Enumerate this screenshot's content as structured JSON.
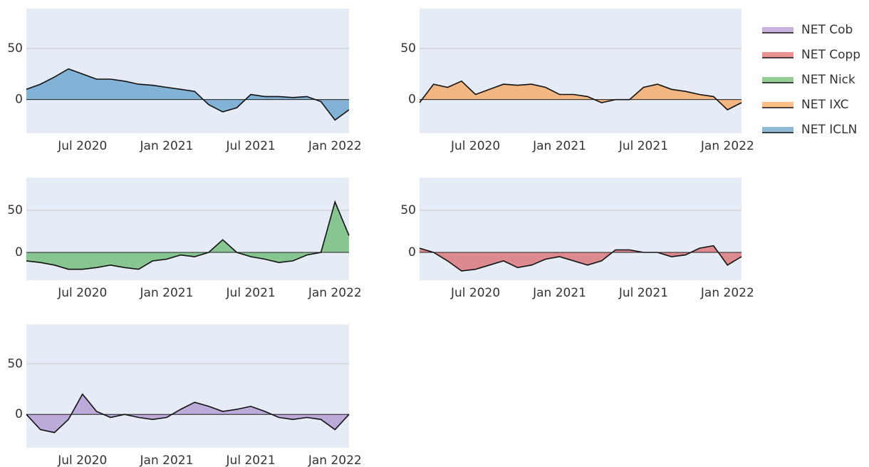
{
  "chart_data": [
    {
      "type": "area",
      "xlim": [
        "2020-03",
        "2022-02"
      ],
      "ylim": [
        -33,
        89
      ],
      "yticks": [
        0,
        50
      ],
      "grid": true,
      "xticks": [
        {
          "value": "2020-07",
          "label": "Jul 2020"
        },
        {
          "value": "2021-01",
          "label": "Jan 2021"
        },
        {
          "value": "2021-07",
          "label": "Jul 2021"
        },
        {
          "value": "2022-01",
          "label": "Jan 2022"
        }
      ],
      "x": [
        "2020-03",
        "2020-04",
        "2020-05",
        "2020-06",
        "2020-07",
        "2020-08",
        "2020-09",
        "2020-10",
        "2020-11",
        "2020-12",
        "2021-01",
        "2021-02",
        "2021-03",
        "2021-04",
        "2021-05",
        "2021-06",
        "2021-07",
        "2021-08",
        "2021-09",
        "2021-10",
        "2021-11",
        "2021-12",
        "2022-01",
        "2022-02"
      ],
      "series": [
        {
          "name": "NET ICLN",
          "color": "#1f77b4",
          "values": [
            10,
            15,
            22,
            30,
            25,
            20,
            20,
            18,
            15,
            14,
            12,
            10,
            8,
            -5,
            -12,
            -8,
            5,
            3,
            3,
            2,
            3,
            -2,
            -20,
            -10
          ]
        }
      ]
    },
    {
      "type": "area",
      "xlim": [
        "2020-03",
        "2022-02"
      ],
      "ylim": [
        -33,
        89
      ],
      "yticks": [
        0,
        50
      ],
      "grid": true,
      "xticks": [
        {
          "value": "2020-07",
          "label": "Jul 2020"
        },
        {
          "value": "2021-01",
          "label": "Jan 2021"
        },
        {
          "value": "2021-07",
          "label": "Jul 2021"
        },
        {
          "value": "2022-01",
          "label": "Jan 2022"
        }
      ],
      "x": [
        "2020-03",
        "2020-04",
        "2020-05",
        "2020-06",
        "2020-07",
        "2020-08",
        "2020-09",
        "2020-10",
        "2020-11",
        "2020-12",
        "2021-01",
        "2021-02",
        "2021-03",
        "2021-04",
        "2021-05",
        "2021-06",
        "2021-07",
        "2021-08",
        "2021-09",
        "2021-10",
        "2021-11",
        "2021-12",
        "2022-01",
        "2022-02"
      ],
      "series": [
        {
          "name": "NET IXC",
          "color": "#ff7f0e",
          "values": [
            -3,
            15,
            12,
            18,
            5,
            10,
            15,
            14,
            15,
            12,
            5,
            5,
            3,
            -3,
            0,
            0,
            12,
            15,
            10,
            8,
            5,
            3,
            -10,
            -3
          ]
        }
      ]
    },
    {
      "type": "area",
      "xlim": [
        "2020-03",
        "2022-02"
      ],
      "ylim": [
        -33,
        89
      ],
      "yticks": [
        0,
        50
      ],
      "grid": true,
      "xticks": [
        {
          "value": "2020-07",
          "label": "Jul 2020"
        },
        {
          "value": "2021-01",
          "label": "Jan 2021"
        },
        {
          "value": "2021-07",
          "label": "Jul 2021"
        },
        {
          "value": "2022-01",
          "label": "Jan 2022"
        }
      ],
      "x": [
        "2020-03",
        "2020-04",
        "2020-05",
        "2020-06",
        "2020-07",
        "2020-08",
        "2020-09",
        "2020-10",
        "2020-11",
        "2020-12",
        "2021-01",
        "2021-02",
        "2021-03",
        "2021-04",
        "2021-05",
        "2021-06",
        "2021-07",
        "2021-08",
        "2021-09",
        "2021-10",
        "2021-11",
        "2021-12",
        "2022-01",
        "2022-02"
      ],
      "series": [
        {
          "name": "NET Nick",
          "color": "#2ca02c",
          "values": [
            -10,
            -12,
            -15,
            -20,
            -20,
            -18,
            -15,
            -18,
            -20,
            -10,
            -8,
            -3,
            -5,
            0,
            15,
            0,
            -5,
            -8,
            -12,
            -10,
            -3,
            0,
            60,
            20
          ]
        }
      ]
    },
    {
      "type": "area",
      "xlim": [
        "2020-03",
        "2022-02"
      ],
      "ylim": [
        -33,
        89
      ],
      "yticks": [
        0,
        50
      ],
      "grid": true,
      "xticks": [
        {
          "value": "2020-07",
          "label": "Jul 2020"
        },
        {
          "value": "2021-01",
          "label": "Jan 2021"
        },
        {
          "value": "2021-07",
          "label": "Jul 2021"
        },
        {
          "value": "2022-01",
          "label": "Jan 2022"
        }
      ],
      "x": [
        "2020-03",
        "2020-04",
        "2020-05",
        "2020-06",
        "2020-07",
        "2020-08",
        "2020-09",
        "2020-10",
        "2020-11",
        "2020-12",
        "2021-01",
        "2021-02",
        "2021-03",
        "2021-04",
        "2021-05",
        "2021-06",
        "2021-07",
        "2021-08",
        "2021-09",
        "2021-10",
        "2021-11",
        "2021-12",
        "2022-01",
        "2022-02"
      ],
      "series": [
        {
          "name": "NET Copp",
          "color": "#d62728",
          "values": [
            5,
            0,
            -10,
            -22,
            -20,
            -15,
            -10,
            -18,
            -15,
            -8,
            -5,
            -10,
            -15,
            -10,
            3,
            3,
            0,
            0,
            -5,
            -3,
            5,
            8,
            -15,
            -5
          ]
        }
      ]
    },
    {
      "type": "area",
      "xlim": [
        "2020-03",
        "2022-02"
      ],
      "ylim": [
        -33,
        89
      ],
      "yticks": [
        0,
        50
      ],
      "grid": true,
      "xticks": [
        {
          "value": "2020-07",
          "label": "Jul 2020"
        },
        {
          "value": "2021-01",
          "label": "Jan 2021"
        },
        {
          "value": "2021-07",
          "label": "Jul 2021"
        },
        {
          "value": "2022-01",
          "label": "Jan 2022"
        }
      ],
      "x": [
        "2020-03",
        "2020-04",
        "2020-05",
        "2020-06",
        "2020-07",
        "2020-08",
        "2020-09",
        "2020-10",
        "2020-11",
        "2020-12",
        "2021-01",
        "2021-02",
        "2021-03",
        "2021-04",
        "2021-05",
        "2021-06",
        "2021-07",
        "2021-08",
        "2021-09",
        "2021-10",
        "2021-11",
        "2021-12",
        "2022-01",
        "2022-02"
      ],
      "series": [
        {
          "name": "NET Cob",
          "color": "#9467bd",
          "values": [
            0,
            -15,
            -18,
            -5,
            20,
            3,
            -3,
            0,
            -3,
            -5,
            -3,
            5,
            12,
            8,
            3,
            5,
            8,
            3,
            -3,
            -5,
            -3,
            -5,
            -15,
            0
          ]
        }
      ]
    }
  ]
}
